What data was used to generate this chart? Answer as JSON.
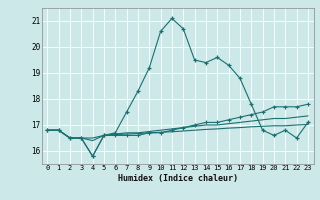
{
  "xlabel": "Humidex (Indice chaleur)",
  "ylim": [
    15.5,
    21.5
  ],
  "y_ticks": [
    16,
    17,
    18,
    19,
    20,
    21
  ],
  "background_color": "#cce8e8",
  "grid_color": "#ffffff",
  "line_color": "#1a7070",
  "line1": [
    16.8,
    16.8,
    16.5,
    16.5,
    15.8,
    16.6,
    16.7,
    17.5,
    18.3,
    19.2,
    20.6,
    21.1,
    20.7,
    19.5,
    19.4,
    19.6,
    19.3,
    18.8,
    17.8,
    16.8,
    16.6,
    16.8,
    16.5,
    17.1
  ],
  "line2": [
    16.8,
    16.8,
    16.5,
    16.5,
    15.8,
    16.6,
    16.6,
    16.6,
    16.6,
    16.7,
    16.7,
    16.8,
    16.9,
    17.0,
    17.1,
    17.1,
    17.2,
    17.3,
    17.4,
    17.5,
    17.7,
    17.7,
    17.7,
    17.8
  ],
  "line3": [
    16.8,
    16.8,
    16.5,
    16.5,
    16.4,
    16.6,
    16.65,
    16.7,
    16.7,
    16.75,
    16.8,
    16.85,
    16.9,
    16.95,
    17.0,
    17.0,
    17.05,
    17.1,
    17.15,
    17.2,
    17.25,
    17.25,
    17.3,
    17.35
  ],
  "line4": [
    16.8,
    16.8,
    16.5,
    16.5,
    16.5,
    16.6,
    16.63,
    16.65,
    16.67,
    16.7,
    16.72,
    16.74,
    16.77,
    16.8,
    16.83,
    16.85,
    16.88,
    16.9,
    16.93,
    16.95,
    16.97,
    16.97,
    17.0,
    17.02
  ],
  "xlim": [
    -0.5,
    23.5
  ],
  "x_ticks": [
    0,
    1,
    2,
    3,
    4,
    5,
    6,
    7,
    8,
    9,
    10,
    11,
    12,
    13,
    14,
    15,
    16,
    17,
    18,
    19,
    20,
    21,
    22,
    23
  ],
  "x_tick_labels": [
    "0",
    "1",
    "2",
    "3",
    "4",
    "5",
    "6",
    "7",
    "8",
    "9",
    "10",
    "11",
    "12",
    "13",
    "14",
    "15",
    "16",
    "17",
    "18",
    "19",
    "20",
    "21",
    "22",
    "23"
  ]
}
